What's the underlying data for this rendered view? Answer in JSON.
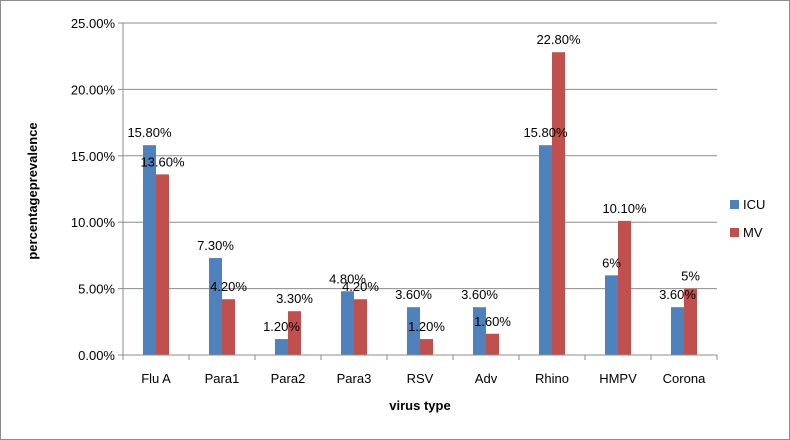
{
  "chart_data": {
    "type": "bar",
    "title": "",
    "xlabel": "virus type",
    "ylabel": "percentageprevalence",
    "ylim": [
      0,
      25
    ],
    "yticks": [
      "0.00%",
      "5.00%",
      "10.00%",
      "15.00%",
      "20.00%",
      "25.00%"
    ],
    "ytick_values": [
      0,
      5,
      10,
      15,
      20,
      25
    ],
    "grid": true,
    "legend_position": "right",
    "categories": [
      "Flu A",
      "Para1",
      "Para2",
      "Para3",
      "RSV",
      "Adv",
      "Rhino",
      "HMPV",
      "Corona"
    ],
    "series": [
      {
        "name": "ICU",
        "color": "#4f81bd",
        "values": [
          15.8,
          7.3,
          1.2,
          4.8,
          3.6,
          3.6,
          15.8,
          6,
          3.6
        ],
        "labels": [
          "15.80%",
          "7.30%",
          "1.20%",
          "4.80%",
          "3.60%",
          "3.60%",
          "15.80%",
          "6%",
          "3.60%"
        ]
      },
      {
        "name": "MV",
        "color": "#c0504d",
        "values": [
          13.6,
          4.2,
          3.3,
          4.2,
          1.2,
          1.6,
          22.8,
          10.1,
          5
        ],
        "labels": [
          "13.60%",
          "4.20%",
          "3.30%",
          "4.20%",
          "1.20%",
          "1.60%",
          "22.80%",
          "10.10%",
          "5%"
        ]
      }
    ]
  }
}
